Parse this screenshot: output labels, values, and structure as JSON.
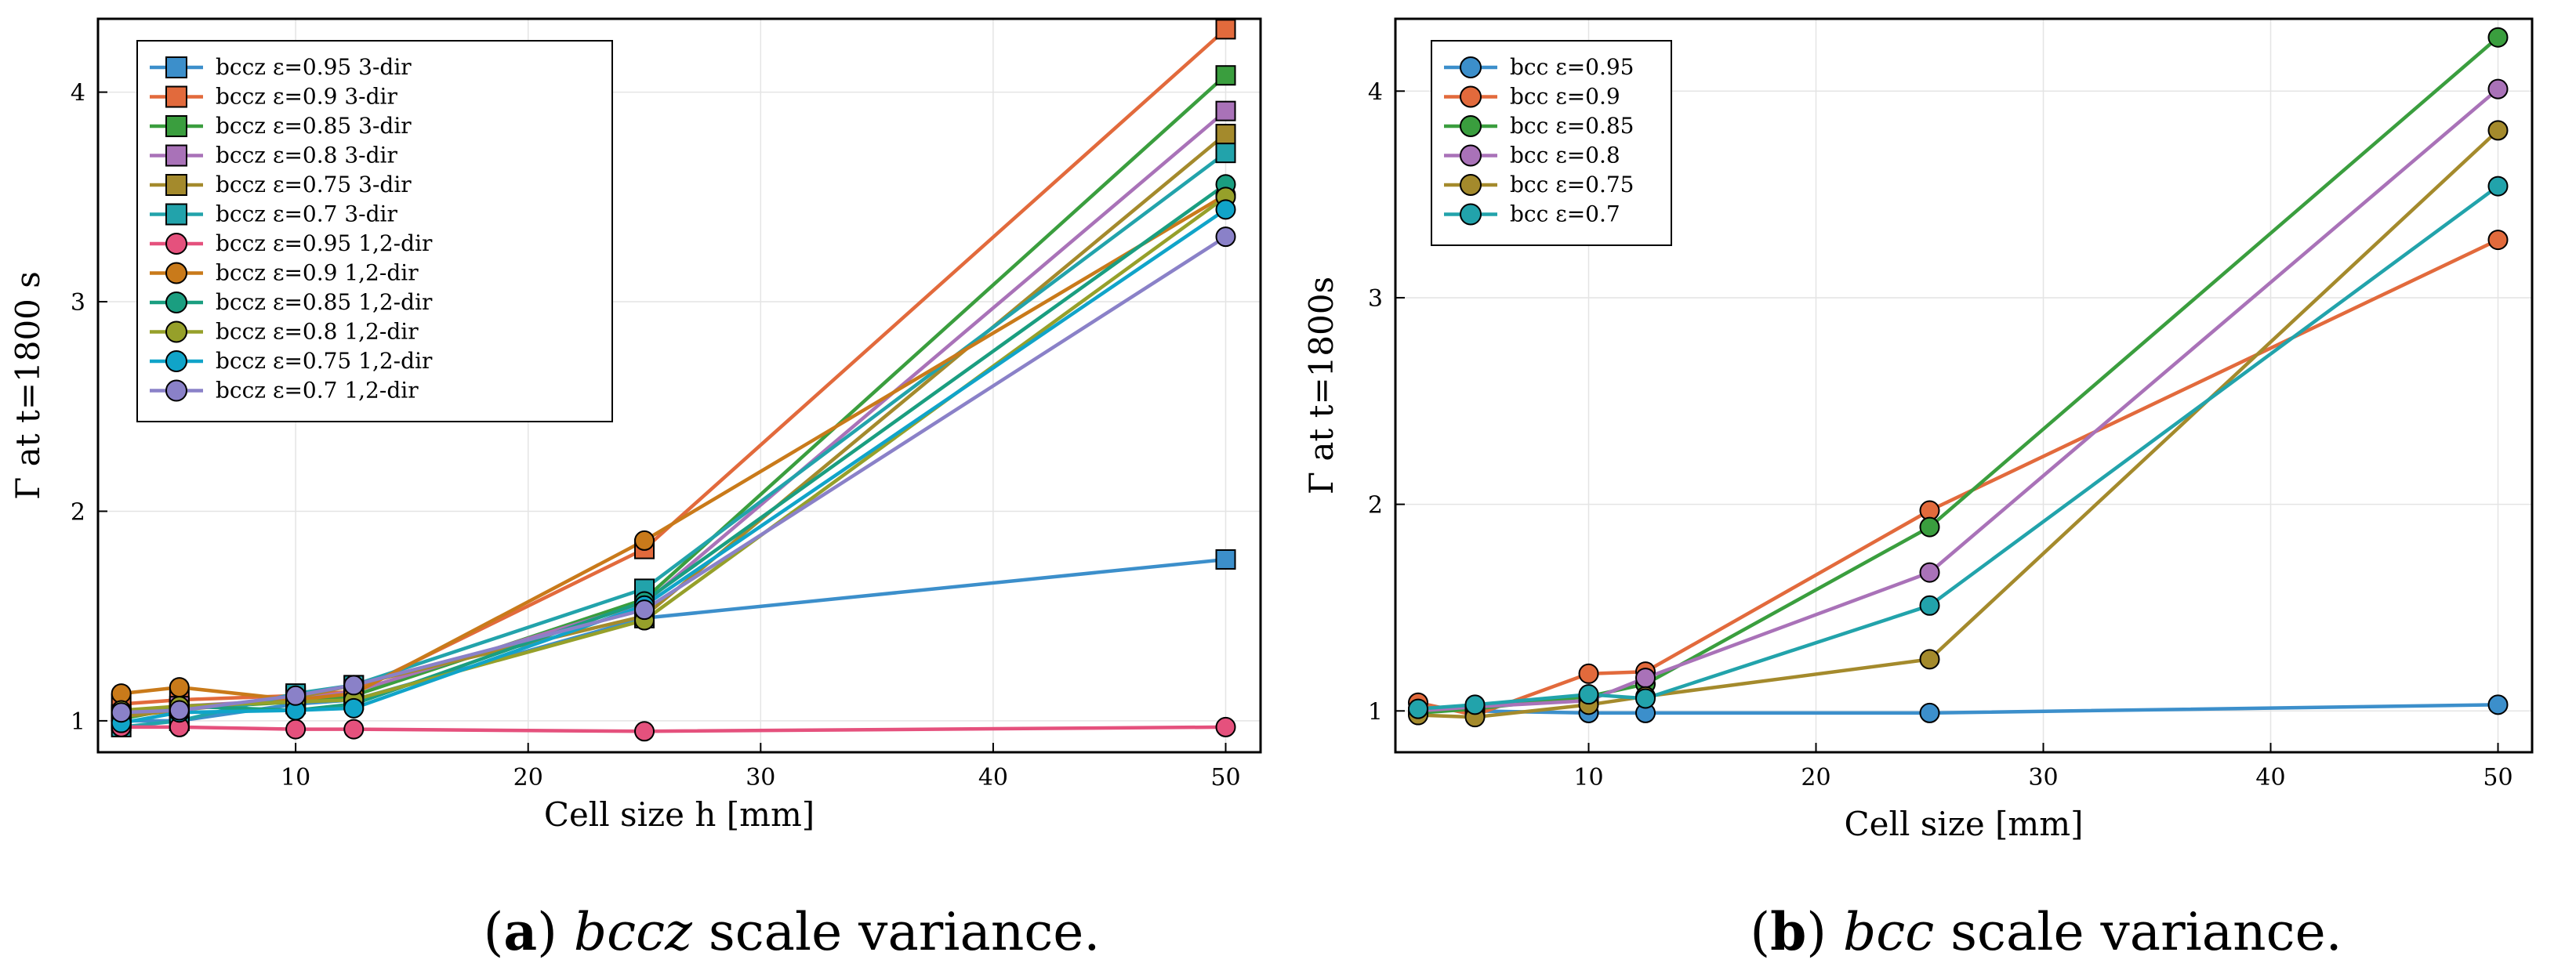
{
  "colors": {
    "c1": "#3c8fcb",
    "c2": "#e26a3c",
    "c3": "#3a9e3e",
    "c4": "#a972b8",
    "c5": "#a48a2c",
    "c6": "#22a3ab",
    "c7": "#e5517d",
    "c8": "#c97a1a",
    "c9": "#1a9e80",
    "c10": "#96a02a",
    "c11": "#10a4c9",
    "c12": "#8a81c8"
  },
  "captions": {
    "a": {
      "label": "a",
      "name": "bccz",
      "rest": "scale variance."
    },
    "b": {
      "label": "b",
      "name": "bcc",
      "rest": "scale variance."
    }
  },
  "chart_data": [
    {
      "type": "line",
      "xlabel": "Cell size h [mm]",
      "ylabel": "Γ at t=1800 s",
      "xlim": [
        1.5,
        51.5
      ],
      "ylim": [
        0.85,
        4.35
      ],
      "xticks": [
        10,
        20,
        30,
        40,
        50
      ],
      "yticks": [
        1,
        2,
        3,
        4
      ],
      "grid": true,
      "legend_position": "top-left",
      "x": [
        2.5,
        5,
        10,
        12.5,
        25,
        50
      ],
      "series": [
        {
          "name": "bccz ε=0.95 3-dir",
          "marker": "square",
          "color_key": "c1",
          "values": [
            1.0,
            1.0,
            1.08,
            1.1,
            1.49,
            1.77
          ]
        },
        {
          "name": "bccz ε=0.9 3-dir",
          "marker": "square",
          "color_key": "c2",
          "values": [
            1.08,
            1.1,
            1.12,
            1.14,
            1.82,
            4.3
          ]
        },
        {
          "name": "bccz ε=0.85 3-dir",
          "marker": "square",
          "color_key": "c3",
          "values": [
            1.01,
            1.06,
            1.09,
            1.12,
            1.58,
            4.08
          ]
        },
        {
          "name": "bccz ε=0.8 3-dir",
          "marker": "square",
          "color_key": "c4",
          "values": [
            1.03,
            1.07,
            1.1,
            1.14,
            1.56,
            3.91
          ]
        },
        {
          "name": "bccz ε=0.75 3-dir",
          "marker": "square",
          "color_key": "c5",
          "values": [
            1.02,
            1.05,
            1.11,
            1.17,
            1.5,
            3.8
          ]
        },
        {
          "name": "bccz ε=0.7 3-dir",
          "marker": "square",
          "color_key": "c6",
          "values": [
            0.97,
            1.0,
            1.13,
            1.17,
            1.63,
            3.71
          ]
        },
        {
          "name": "bccz ε=0.95 1,2-dir",
          "marker": "circle",
          "color_key": "c7",
          "values": [
            0.97,
            0.97,
            0.96,
            0.96,
            0.95,
            0.97
          ]
        },
        {
          "name": "bccz ε=0.9 1,2-dir",
          "marker": "circle",
          "color_key": "c8",
          "values": [
            1.13,
            1.16,
            1.1,
            1.13,
            1.86,
            3.51
          ]
        },
        {
          "name": "bccz ε=0.85 1,2-dir",
          "marker": "circle",
          "color_key": "c9",
          "values": [
            1.04,
            1.07,
            1.05,
            1.08,
            1.57,
            3.56
          ]
        },
        {
          "name": "bccz ε=0.8 1,2-dir",
          "marker": "circle",
          "color_key": "c10",
          "values": [
            1.05,
            1.07,
            1.09,
            1.1,
            1.48,
            3.5
          ]
        },
        {
          "name": "bccz ε=0.75 1,2-dir",
          "marker": "circle",
          "color_key": "c11",
          "values": [
            0.99,
            1.04,
            1.05,
            1.06,
            1.55,
            3.44
          ]
        },
        {
          "name": "bccz ε=0.7 1,2-dir",
          "marker": "circle",
          "color_key": "c12",
          "values": [
            1.04,
            1.05,
            1.12,
            1.17,
            1.53,
            3.31
          ]
        }
      ]
    },
    {
      "type": "line",
      "xlabel": "Cell size [mm]",
      "ylabel": "Γ at t=1800s",
      "xlim": [
        1.5,
        51.5
      ],
      "ylim": [
        0.8,
        4.35
      ],
      "xticks": [
        10,
        20,
        30,
        40,
        50
      ],
      "yticks": [
        1,
        2,
        3,
        4
      ],
      "grid": true,
      "legend_position": "top-left",
      "x": [
        2.5,
        5,
        10,
        12.5,
        25,
        50
      ],
      "series": [
        {
          "name": "bcc ε=0.95",
          "marker": "circle",
          "color_key": "c1",
          "values": [
            1.01,
            1.0,
            0.99,
            0.99,
            0.99,
            1.03
          ]
        },
        {
          "name": "bcc ε=0.9",
          "marker": "circle",
          "color_key": "c2",
          "values": [
            1.04,
            0.98,
            1.18,
            1.19,
            1.97,
            3.28
          ]
        },
        {
          "name": "bcc ε=0.85",
          "marker": "circle",
          "color_key": "c3",
          "values": [
            0.99,
            1.01,
            1.07,
            1.13,
            1.89,
            4.26
          ]
        },
        {
          "name": "bcc ε=0.8",
          "marker": "circle",
          "color_key": "c4",
          "values": [
            1.0,
            1.02,
            1.05,
            1.16,
            1.67,
            4.01
          ]
        },
        {
          "name": "bcc ε=0.75",
          "marker": "circle",
          "color_key": "c5",
          "values": [
            0.98,
            0.97,
            1.03,
            1.07,
            1.25,
            3.81
          ]
        },
        {
          "name": "bcc ε=0.7",
          "marker": "circle",
          "color_key": "c6",
          "values": [
            1.01,
            1.03,
            1.08,
            1.06,
            1.51,
            3.54
          ]
        }
      ]
    }
  ]
}
